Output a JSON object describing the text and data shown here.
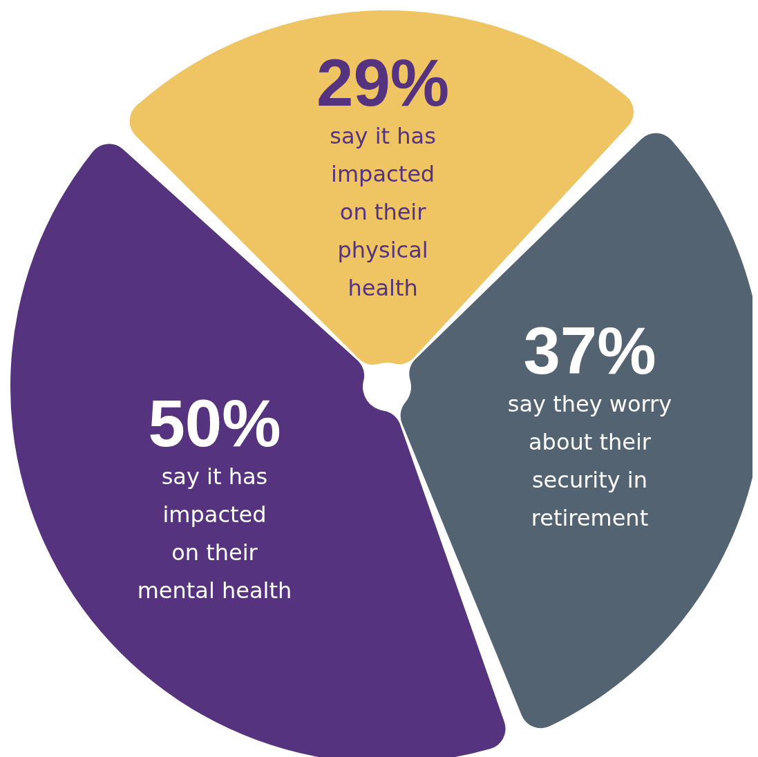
{
  "chart_data": {
    "type": "pie",
    "categories": [
      "say it has\nimpacted\non their\nphysical\nhealth",
      "say they worry\nabout their\nsecurity in\nretirement",
      "say it has\nimpacted\non their\nmental health"
    ],
    "values": [
      29,
      37,
      50
    ],
    "value_labels": [
      "29%",
      "37%",
      "50%"
    ],
    "colors": [
      "#efc462",
      "#536372",
      "#56337f"
    ],
    "legend": false
  }
}
